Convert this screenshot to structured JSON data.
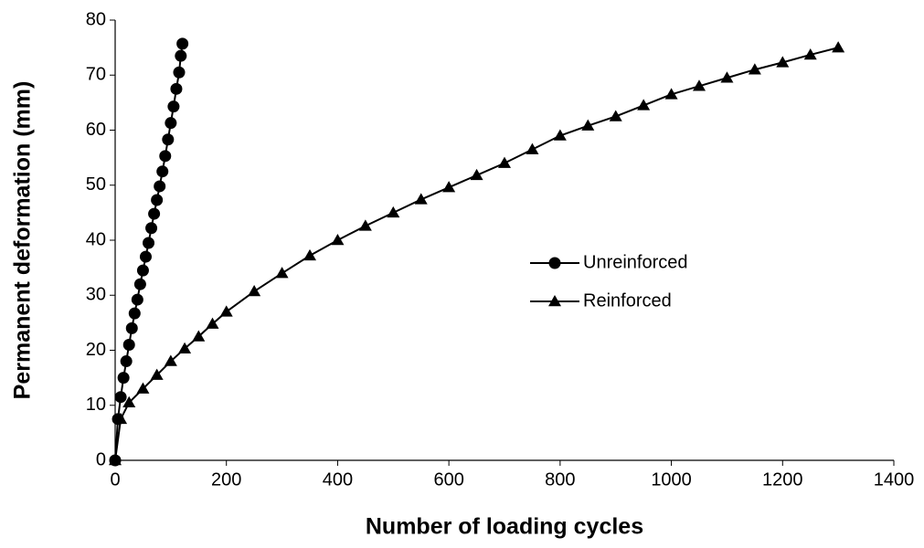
{
  "chart_data": {
    "type": "line",
    "x_label": "Number of loading cycles",
    "y_label": "Permanent deformation (mm)",
    "xlim": [
      0,
      1400
    ],
    "xticks": [
      0,
      200,
      400,
      600,
      800,
      1000,
      1200,
      1400
    ],
    "ylim": [
      0,
      80
    ],
    "yticks": [
      0,
      10,
      20,
      30,
      40,
      50,
      60,
      70,
      80
    ],
    "grid": false,
    "legend": "right",
    "series": [
      {
        "name": "Unreinforced",
        "color": "#000000",
        "marker": "circle",
        "x": [
          0,
          5,
          10,
          15,
          20,
          25,
          30,
          35,
          40,
          45,
          50,
          55,
          60,
          65,
          70,
          75,
          80,
          85,
          90,
          95,
          100,
          105,
          110,
          115,
          118,
          121
        ],
        "values": [
          0,
          7.5,
          11.5,
          15,
          18,
          21,
          24,
          26.7,
          29.2,
          32,
          34.5,
          37,
          39.5,
          42.2,
          44.8,
          47.3,
          49.8,
          52.5,
          55.3,
          58.3,
          61.3,
          64.3,
          67.5,
          70.5,
          73.5,
          75.7
        ]
      },
      {
        "name": "Reinforced",
        "color": "#000000",
        "marker": "triangle",
        "x": [
          0,
          10,
          25,
          50,
          75,
          100,
          125,
          150,
          175,
          200,
          250,
          300,
          350,
          400,
          450,
          500,
          550,
          600,
          650,
          700,
          750,
          800,
          850,
          900,
          950,
          1000,
          1050,
          1100,
          1150,
          1200,
          1250,
          1300
        ],
        "values": [
          0,
          7.5,
          10.5,
          13,
          15.5,
          18,
          20.3,
          22.5,
          24.8,
          27,
          30.7,
          34,
          37.2,
          40,
          42.6,
          45,
          47.4,
          49.6,
          51.8,
          54,
          56.5,
          59,
          60.8,
          62.5,
          64.5,
          66.5,
          68,
          69.5,
          71,
          72.3,
          73.7,
          75
        ]
      }
    ]
  }
}
